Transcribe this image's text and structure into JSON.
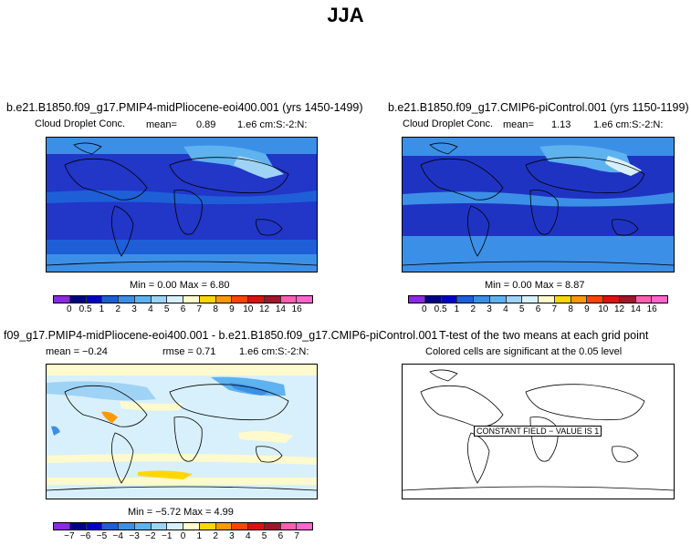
{
  "title": "JJA",
  "panels": [
    {
      "title": "b.e21.B1850.f09_g17.PMIP4-midPliocene-eoi400.001 (yrs 1450-1499)",
      "variable": "Cloud Droplet Conc.",
      "mean_label": "mean=",
      "mean": "0.89",
      "units": "1.e6 cm:S:-2:N:",
      "minmax_text": "Min =    0.00  Max =    6.80",
      "colorbar_ticks": [
        "0",
        "0.5",
        "1",
        "2",
        "3",
        "4",
        "5",
        "6",
        "7",
        "8",
        "9",
        "10",
        "12",
        "14",
        "16"
      ]
    },
    {
      "title": "b.e21.B1850.f09_g17.CMIP6-piControl.001 (yrs 1150-1199)",
      "variable": "Cloud Droplet Conc.",
      "mean_label": "mean=",
      "mean": "1.13",
      "units": "1.e6 cm:S:-2:N:",
      "minmax_text": "Min =    0.00  Max =    8.87",
      "colorbar_ticks": [
        "0",
        "0.5",
        "1",
        "2",
        "3",
        "4",
        "5",
        "6",
        "7",
        "8",
        "9",
        "10",
        "12",
        "14",
        "16"
      ]
    },
    {
      "title": "f09_g17.PMIP4-midPliocene-eoi400.001 - b.e21.B1850.f09_g17.CMIP6-piControl.001",
      "mean_text": "mean = −0.24",
      "rmse_text": "rmse =   0.71",
      "units": "1.e6 cm:S:-2:N:",
      "minmax_text": "Min =  −5.72  Max =    4.99",
      "colorbar_ticks": [
        "−7",
        "−6",
        "−5",
        "−4",
        "−3",
        "−2",
        "−1",
        "0",
        "1",
        "2",
        "3",
        "4",
        "5",
        "6",
        "7"
      ]
    },
    {
      "title": "T-test of the two means at each grid point",
      "subtitle": "Colored cells are significant at the 0.05 level",
      "constant_label": "CONSTANT FIELD − VALUE IS 1"
    }
  ],
  "colors": {
    "abs_scale": [
      "#8a2be2",
      "#00008b",
      "#0000cd",
      "#1e5fd8",
      "#3c8fe6",
      "#5fb2f0",
      "#9fd3f5",
      "#d8f0fb",
      "#fffacd",
      "#ffd700",
      "#ff9900",
      "#ff4500",
      "#dd1111",
      "#a0152b",
      "#ff5fb0",
      "#ff66cc"
    ],
    "diff_scale": [
      "#8a2be2",
      "#00008b",
      "#0000cd",
      "#1e5fd8",
      "#3c8fe6",
      "#5fb2f0",
      "#9fd3f5",
      "#d8f0fb",
      "#fffacd",
      "#ffd700",
      "#ff9900",
      "#ff4500",
      "#dd1111",
      "#a0152b",
      "#ff5fb0",
      "#ff66cc"
    ],
    "ocean_abs_deep": "#1c2fbf",
    "ocean_abs_mid": "#2b57d8",
    "ocean_abs_light": "#3c8fe6",
    "diff_bg": "#d8f0fb",
    "diff_pos": "#fffacd"
  }
}
